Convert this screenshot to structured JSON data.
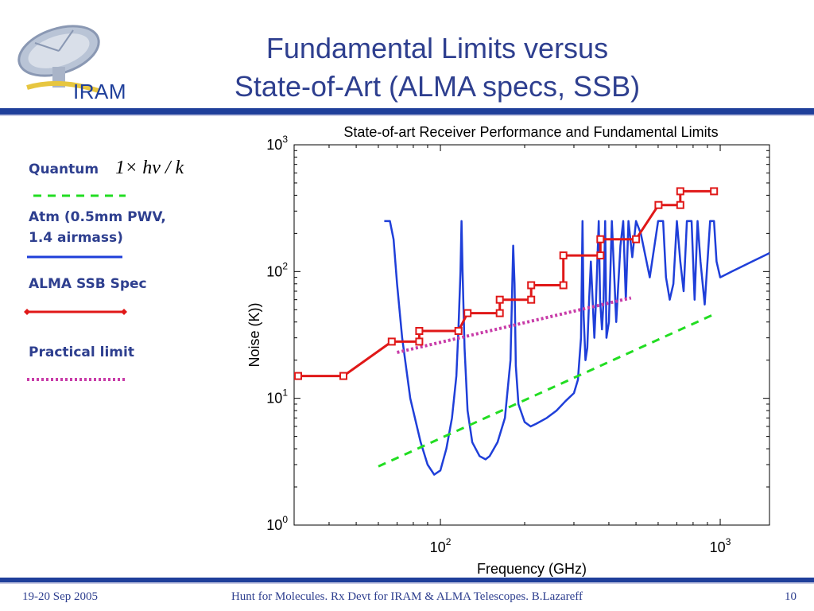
{
  "header": {
    "logo_text": "IRAM",
    "title_line1": "Fundamental Limits versus",
    "title_line2": "State-of-Art (ALMA specs, SSB)"
  },
  "legend": {
    "quantum_label": "Quantum",
    "quantum_formula": "1× hν / k",
    "atm_label_line1": "Atm (0.5mm PWV,",
    "atm_label_line2": "1.4 airmass)",
    "alma_label": "ALMA SSB Spec",
    "practical_label": "Practical limit"
  },
  "footer": {
    "date": "19-20 Sep 2005",
    "center": "Hunt for Molecules. Rx Devt for IRAM & ALMA Telescopes. B.Lazareff",
    "page": "10"
  },
  "colors": {
    "quantum": "#22dd22",
    "atm": "#1f3fd9",
    "alma": "#e01818",
    "practical": "#c83ca8"
  },
  "chart_data": {
    "type": "line",
    "title": "State-of-art Receiver Performance and Fundamental Limits",
    "xlabel": "Frequency (GHz)",
    "ylabel": "Noise (K))",
    "xscale": "log",
    "yscale": "log",
    "xlim": [
      30,
      1500
    ],
    "ylim": [
      1,
      1000
    ],
    "x_ticks": [
      "10^2",
      "10^3"
    ],
    "y_ticks": [
      "10^0",
      "10^1",
      "10^2",
      "10^3"
    ],
    "grid": false,
    "series": [
      {
        "name": "Quantum",
        "style": "dashed",
        "x": [
          60,
          950
        ],
        "y": [
          2.9,
          46
        ]
      },
      {
        "name": "ALMA SSB Spec",
        "style": "solid-markers",
        "x": [
          31,
          45,
          67,
          84,
          84,
          116,
          125,
          163,
          163,
          211,
          211,
          275,
          275,
          373,
          373,
          500,
          602,
          720,
          720,
          950
        ],
        "y": [
          15,
          15,
          28,
          28,
          34,
          34,
          47,
          47,
          60,
          60,
          78,
          78,
          134,
          134,
          180,
          180,
          335,
          335,
          430,
          430
        ]
      },
      {
        "name": "Practical limit",
        "style": "dotted",
        "x": [
          70,
          480
        ],
        "y": [
          23,
          62
        ]
      },
      {
        "name": "Atm (0.5mm PWV, 1.4 airmass)",
        "style": "solid",
        "x": [
          63,
          66,
          68,
          70,
          73,
          78,
          85,
          90,
          95,
          100,
          105,
          110,
          114,
          116,
          118,
          119,
          120,
          122,
          125,
          130,
          138,
          145,
          150,
          160,
          170,
          178,
          182,
          184,
          186,
          190,
          200,
          210,
          220,
          240,
          260,
          280,
          300,
          310,
          318,
          322,
          325,
          330,
          335,
          340,
          345,
          355,
          360,
          368,
          372,
          378,
          383,
          388,
          392,
          400,
          410,
          425,
          440,
          450,
          460,
          470,
          485,
          500,
          520,
          560,
          600,
          625,
          640,
          660,
          680,
          700,
          720,
          740,
          760,
          790,
          810,
          830,
          850,
          880,
          920,
          950,
          970,
          1000,
          1050,
          1100,
          1200,
          1300,
          1400,
          1500
        ],
        "y": [
          250,
          250,
          180,
          80,
          30,
          10,
          4.5,
          3.0,
          2.5,
          2.7,
          4,
          7,
          15,
          35,
          100,
          250,
          100,
          25,
          8,
          4.5,
          3.5,
          3.3,
          3.5,
          4.5,
          7,
          20,
          160,
          80,
          18,
          9,
          6.5,
          6,
          6.3,
          7,
          8,
          9.5,
          11,
          14,
          30,
          250,
          45,
          20,
          25,
          60,
          120,
          30,
          60,
          250,
          60,
          35,
          60,
          250,
          30,
          40,
          250,
          40,
          160,
          250,
          60,
          250,
          130,
          250,
          200,
          90,
          250,
          250,
          90,
          60,
          80,
          250,
          120,
          70,
          250,
          250,
          60,
          250,
          120,
          55,
          250,
          250,
          120,
          90,
          95,
          100,
          110,
          120,
          130,
          140
        ]
      }
    ]
  }
}
